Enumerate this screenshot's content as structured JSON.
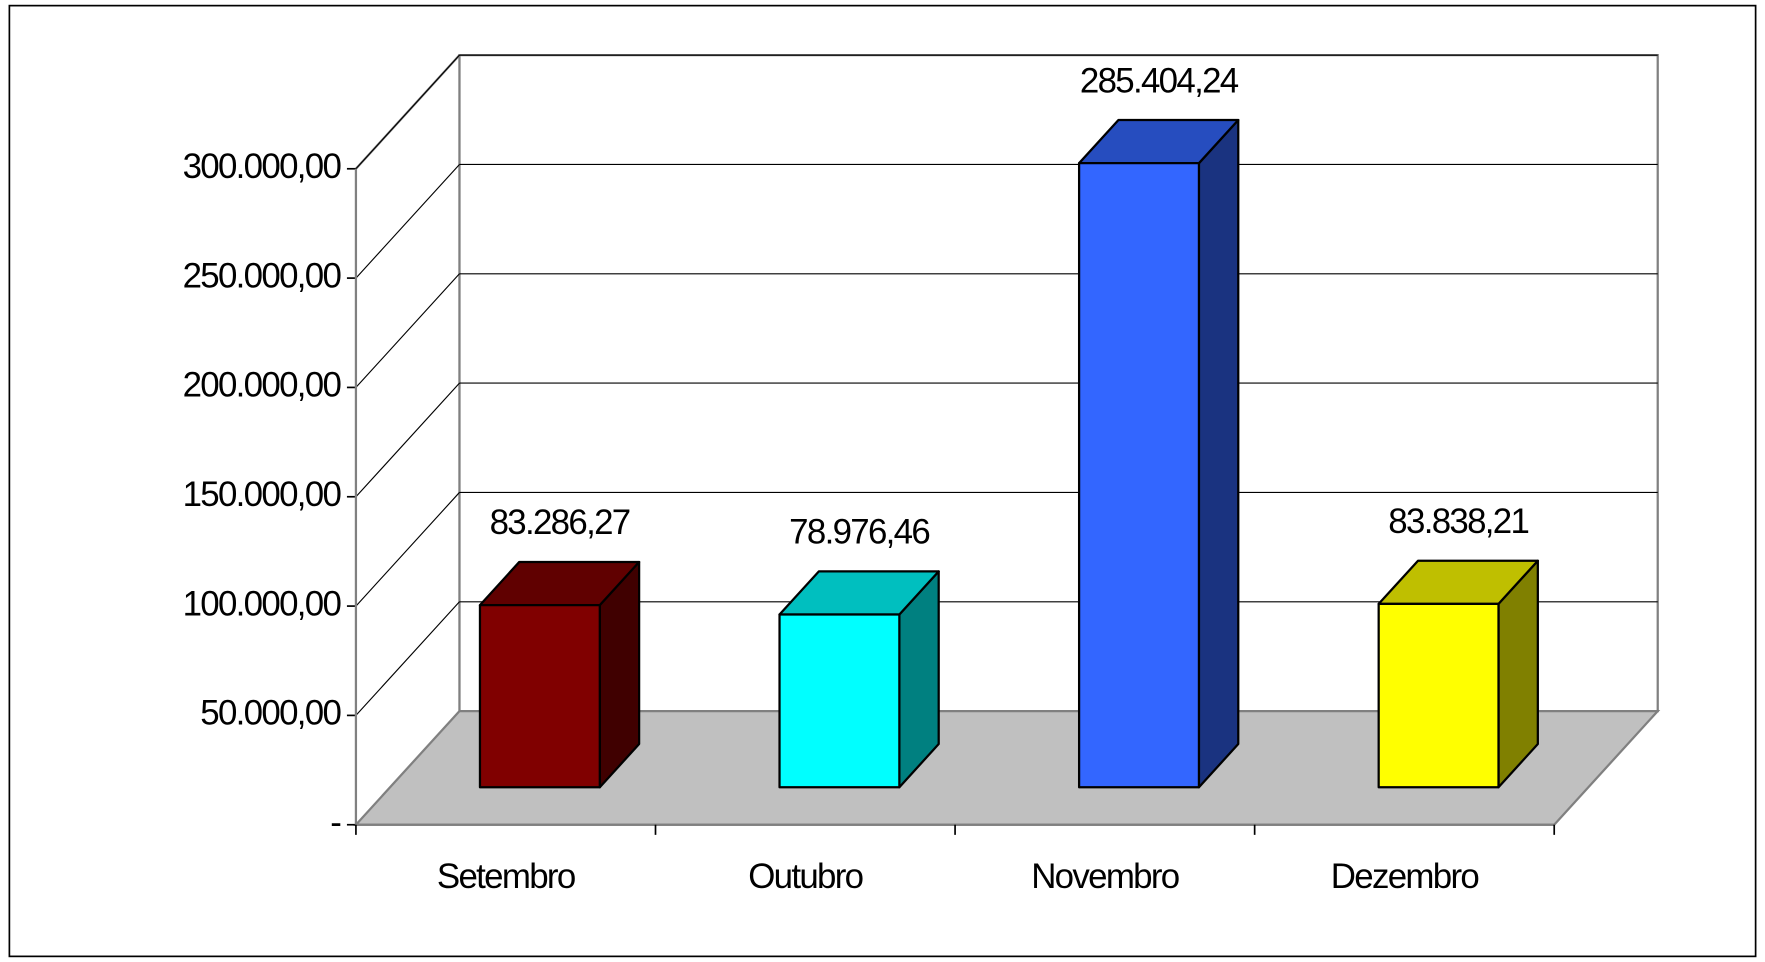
{
  "chart_data": {
    "type": "bar3d",
    "categories": [
      "Setembro",
      "Outubro",
      "Novembro",
      "Dezembro"
    ],
    "values": [
      83286.27,
      78976.46,
      285404.24,
      83838.21
    ],
    "value_labels": [
      "83.286,27",
      "78.976,46",
      "285.404,24",
      "83.838,21"
    ],
    "colors": [
      "#800000",
      "#00ffff",
      "#3366ff",
      "#ffff00"
    ],
    "ylim": [
      0,
      300000
    ],
    "yticks": [
      {
        "value": 0,
        "label": "-"
      },
      {
        "value": 50000,
        "label": "50.000,00"
      },
      {
        "value": 100000,
        "label": "100.000,00"
      },
      {
        "value": 150000,
        "label": "150.000,00"
      },
      {
        "value": 200000,
        "label": "200.000,00"
      },
      {
        "value": 250000,
        "label": "250.000,00"
      },
      {
        "value": 300000,
        "label": "300.000,00"
      }
    ],
    "grid": true
  }
}
